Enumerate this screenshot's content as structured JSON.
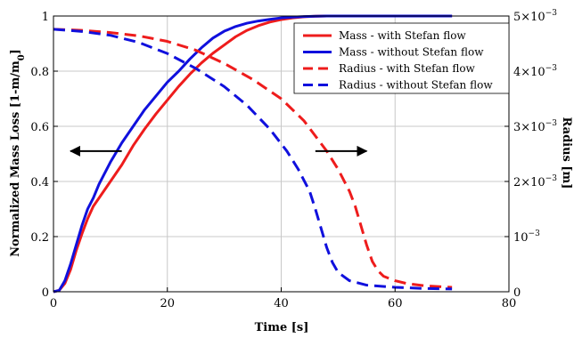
{
  "chart_data": {
    "type": "line",
    "xlabel": "Time [s]",
    "ylabel_left": "Normalized Mass Loss [1-m/m",
    "ylabel_left_sub": "0",
    "ylabel_left_close": "]",
    "ylabel_right": "Radius [m]",
    "xlim": [
      0,
      80
    ],
    "ylim_left": [
      0,
      1
    ],
    "ylim_right": [
      0,
      0.005
    ],
    "grid": true,
    "legend_position": "top-right",
    "x_ticks": [
      "0",
      "20",
      "40",
      "60",
      "80"
    ],
    "y_left_ticks": [
      "0",
      "0.2",
      "0.4",
      "0.6",
      "0.8",
      "1"
    ],
    "y_right_ticks": [
      {
        "value": 0,
        "base": "0",
        "exp": ""
      },
      {
        "value": 0.001,
        "base": "10",
        "exp": "−3"
      },
      {
        "value": 0.002,
        "base": "2×10",
        "exp": "−3"
      },
      {
        "value": 0.003,
        "base": "3×10",
        "exp": "−3"
      },
      {
        "value": 0.004,
        "base": "4×10",
        "exp": "−3"
      },
      {
        "value": 0.005,
        "base": "5×10",
        "exp": "−3"
      }
    ],
    "series": [
      {
        "name": "Mass - with Stefan flow",
        "axis": "left",
        "color": "#ee1c1c",
        "dash": "solid",
        "points": [
          [
            0,
            0
          ],
          [
            1,
            0.005
          ],
          [
            2,
            0.03
          ],
          [
            3,
            0.08
          ],
          [
            4,
            0.15
          ],
          [
            5,
            0.21
          ],
          [
            6,
            0.265
          ],
          [
            7,
            0.31
          ],
          [
            8,
            0.34
          ],
          [
            10,
            0.4
          ],
          [
            12,
            0.46
          ],
          [
            14,
            0.53
          ],
          [
            16,
            0.59
          ],
          [
            18,
            0.645
          ],
          [
            20,
            0.695
          ],
          [
            22,
            0.745
          ],
          [
            24,
            0.79
          ],
          [
            26,
            0.83
          ],
          [
            28,
            0.865
          ],
          [
            30,
            0.895
          ],
          [
            32,
            0.925
          ],
          [
            34,
            0.948
          ],
          [
            36,
            0.965
          ],
          [
            38,
            0.978
          ],
          [
            40,
            0.987
          ],
          [
            42,
            0.993
          ],
          [
            44,
            0.997
          ],
          [
            46,
            0.999
          ],
          [
            48,
            1.0
          ],
          [
            52,
            1.0
          ],
          [
            56,
            1.0
          ],
          [
            60,
            1.0
          ],
          [
            65,
            1.0
          ],
          [
            70,
            1.0
          ]
        ]
      },
      {
        "name": "Mass - without Stefan flow",
        "axis": "left",
        "color": "#1010dd",
        "dash": "solid",
        "points": [
          [
            0,
            0
          ],
          [
            1,
            0.005
          ],
          [
            2,
            0.04
          ],
          [
            3,
            0.1
          ],
          [
            4,
            0.17
          ],
          [
            5,
            0.24
          ],
          [
            6,
            0.3
          ],
          [
            7,
            0.34
          ],
          [
            8,
            0.39
          ],
          [
            10,
            0.47
          ],
          [
            12,
            0.54
          ],
          [
            14,
            0.6
          ],
          [
            16,
            0.66
          ],
          [
            18,
            0.71
          ],
          [
            20,
            0.76
          ],
          [
            22,
            0.8
          ],
          [
            24,
            0.845
          ],
          [
            26,
            0.885
          ],
          [
            28,
            0.92
          ],
          [
            30,
            0.945
          ],
          [
            32,
            0.962
          ],
          [
            34,
            0.974
          ],
          [
            36,
            0.982
          ],
          [
            38,
            0.988
          ],
          [
            40,
            0.993
          ],
          [
            42,
            0.996
          ],
          [
            44,
            0.998
          ],
          [
            46,
            0.999
          ],
          [
            48,
            1.0
          ],
          [
            50,
            1.0
          ],
          [
            55,
            1.0
          ],
          [
            60,
            1.0
          ],
          [
            65,
            1.0
          ],
          [
            70,
            1.0
          ]
        ]
      },
      {
        "name": "Radius - with Stefan flow",
        "axis": "right",
        "color": "#ee1c1c",
        "dash": "dashed",
        "points": [
          [
            0,
            0.00476
          ],
          [
            5,
            0.00474
          ],
          [
            10,
            0.0047
          ],
          [
            15,
            0.00464
          ],
          [
            20,
            0.00454
          ],
          [
            25,
            0.00438
          ],
          [
            30,
            0.00414
          ],
          [
            35,
            0.00385
          ],
          [
            40,
            0.0035
          ],
          [
            44,
            0.0031
          ],
          [
            48,
            0.00255
          ],
          [
            50,
            0.00222
          ],
          [
            52,
            0.00182
          ],
          [
            53,
            0.00155
          ],
          [
            54,
            0.0012
          ],
          [
            55,
            0.00085
          ],
          [
            56,
            0.00055
          ],
          [
            57,
            0.00038
          ],
          [
            58,
            0.00028
          ],
          [
            60,
            0.0002
          ],
          [
            62,
            0.00015
          ],
          [
            65,
            0.00011
          ],
          [
            70,
            8e-05
          ]
        ]
      },
      {
        "name": "Radius - without Stefan flow",
        "axis": "right",
        "color": "#1010dd",
        "dash": "dashed",
        "points": [
          [
            0,
            0.00476
          ],
          [
            5,
            0.00472
          ],
          [
            10,
            0.00465
          ],
          [
            15,
            0.00452
          ],
          [
            20,
            0.00432
          ],
          [
            25,
            0.00405
          ],
          [
            30,
            0.00372
          ],
          [
            34,
            0.00338
          ],
          [
            38,
            0.00295
          ],
          [
            41,
            0.00255
          ],
          [
            43,
            0.00222
          ],
          [
            45,
            0.00182
          ],
          [
            46,
            0.0015
          ],
          [
            47,
            0.00115
          ],
          [
            48,
            0.0008
          ],
          [
            49,
            0.00053
          ],
          [
            50,
            0.00035
          ],
          [
            52,
            0.0002
          ],
          [
            55,
            0.00012
          ],
          [
            60,
            8e-05
          ],
          [
            65,
            6e-05
          ],
          [
            70,
            5e-05
          ]
        ]
      }
    ],
    "annotations": [
      {
        "type": "arrow",
        "direction": "left",
        "x_from": 12,
        "x_to": 3,
        "y_left": 0.51
      },
      {
        "type": "arrow",
        "direction": "right",
        "x_from": 46,
        "x_to": 55,
        "y_left": 0.51
      }
    ]
  }
}
